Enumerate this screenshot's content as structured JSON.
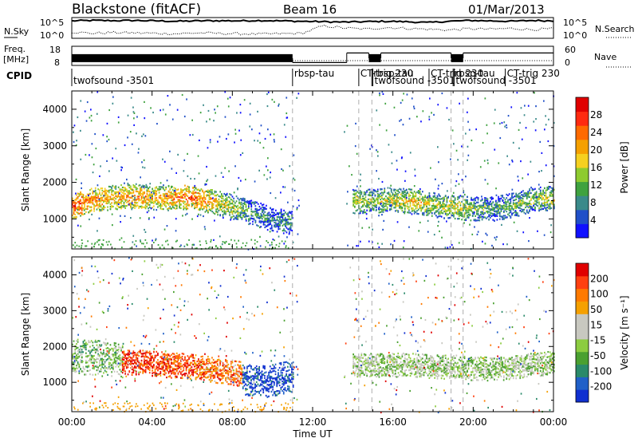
{
  "header": {
    "station": "Blackstone (fitACF)",
    "beam": "Beam 16",
    "date": "01/Mar/2013"
  },
  "noise_panel": {
    "left_label": "N.Sky",
    "right_label": "N.Search",
    "ticks_left": [
      "10^5",
      "10^0"
    ],
    "ticks_right": [
      "10^5",
      "10^0"
    ],
    "series": [
      {
        "name": "N.Sky",
        "style": "solid",
        "values_log10": [
          4.2,
          4.3,
          4.25,
          4.3,
          4.2,
          4.1,
          4.2,
          4.25,
          4.2,
          4.3,
          4.2,
          4.1,
          4.0,
          3.9,
          4.0,
          4.1,
          4.0,
          3.8,
          4.1,
          4.3,
          4.2,
          4.1,
          4.3,
          4.2
        ]
      },
      {
        "name": "N.Search",
        "style": "dotted",
        "values_log10": [
          1.5,
          1.2,
          1.4,
          1.3,
          1.2,
          1.1,
          1.3,
          1.2,
          1.1,
          1.0,
          1.1,
          1.2,
          3.0,
          2.5,
          2.2,
          2.6,
          2.4,
          2.2,
          2.0,
          2.3,
          2.2,
          2.4,
          2.1,
          2.3
        ]
      }
    ]
  },
  "freq_panel": {
    "left_label_top": "Freq.",
    "left_label_bottom": "[MHz]",
    "right_label": "Nave",
    "ticks_left": [
      "18",
      "8"
    ],
    "ticks_right": [
      "60",
      "0"
    ],
    "segments": [
      {
        "start_ut": 0.0,
        "end_ut": 11.0,
        "mhz": 11.8,
        "band": true
      },
      {
        "start_ut": 11.0,
        "end_ut": 13.7,
        "mhz": 9.5,
        "band": false
      },
      {
        "start_ut": 13.7,
        "end_ut": 14.8,
        "mhz": 14.5,
        "band": false
      },
      {
        "start_ut": 14.8,
        "end_ut": 15.4,
        "mhz": 11.8,
        "band": true
      },
      {
        "start_ut": 15.4,
        "end_ut": 18.9,
        "mhz": 14.5,
        "band": false
      },
      {
        "start_ut": 18.9,
        "end_ut": 19.5,
        "mhz": 11.8,
        "band": true
      },
      {
        "start_ut": 19.5,
        "end_ut": 24.0,
        "mhz": 14.5,
        "band": false
      }
    ]
  },
  "cpid": {
    "label": "CPID",
    "entries": [
      {
        "text": "twofsound -3501",
        "start_ut": 0.0,
        "row": 2
      },
      {
        "text": "rbsp-tau",
        "start_ut": 11.0,
        "row": 1
      },
      {
        "text": "CT-trig 230",
        "start_ut": 14.3,
        "row": 1
      },
      {
        "text": "rbsp-tau",
        "start_ut": 14.95,
        "row": 1
      },
      {
        "text": "twofsound -3501",
        "start_ut": 15.0,
        "row": 2
      },
      {
        "text": "CT-trig 230",
        "start_ut": 17.8,
        "row": 1
      },
      {
        "text": "rbsp-tau",
        "start_ut": 19.0,
        "row": 1
      },
      {
        "text": "twofsound -3501",
        "start_ut": 19.05,
        "row": 2
      },
      {
        "text": "CT-trig 230",
        "start_ut": 21.6,
        "row": 1
      }
    ]
  },
  "chart_data": [
    {
      "type": "heatmap",
      "name": "power",
      "ylabel": "Slant Range [km]",
      "ylim": [
        180,
        4500
      ],
      "xlim_hours": [
        0,
        24
      ],
      "yticks": [
        "1000",
        "2000",
        "3000",
        "4000"
      ],
      "colorbar_label": "Power [dB]",
      "colorbar_ticks": [
        "28",
        "24",
        "20",
        "16",
        "12",
        "8",
        "4"
      ],
      "colorbar_colors": [
        "#1010ff",
        "#2050c8",
        "#3a8a8a",
        "#3fa23f",
        "#8ecb2f",
        "#f5d020",
        "#f5a000",
        "#ff6a00",
        "#ff2a10",
        "#e00000"
      ],
      "boundaries_ut": [
        11.0,
        14.3,
        14.95,
        18.9,
        19.5
      ],
      "echo_bands": [
        {
          "start_ut": 0.0,
          "end_ut": 11.0,
          "center_km": [
            1350,
            1550,
            1600,
            1650,
            1600,
            1600,
            1620,
            1500,
            1350,
            1200,
            1000,
            950
          ],
          "width_km": 300,
          "levels": [
            0.85,
            0.75,
            0.65,
            0.7,
            0.65,
            0.7,
            0.8,
            0.65,
            0.5,
            0.35,
            0.3,
            0.35
          ]
        },
        {
          "start_ut": 14.0,
          "end_ut": 24.0,
          "center_km": [
            1500,
            1500,
            1550,
            1500,
            1400,
            1350,
            1300,
            1300,
            1400,
            1550,
            1600
          ],
          "width_km": 300,
          "levels": [
            0.5,
            0.45,
            0.55,
            0.6,
            0.5,
            0.55,
            0.45,
            0.35,
            0.4,
            0.45,
            0.55
          ]
        }
      ]
    },
    {
      "type": "heatmap",
      "name": "velocity",
      "ylabel": "Slant Range [km]",
      "ylim": [
        180,
        4500
      ],
      "xlim_hours": [
        0,
        24
      ],
      "yticks": [
        "1000",
        "2000",
        "3000",
        "4000"
      ],
      "xticks": [
        "00:00",
        "04:00",
        "08:00",
        "12:00",
        "16:00",
        "20:00",
        "00:00"
      ],
      "xlabel": "Time UT",
      "colorbar_label": "Velocity [m s⁻¹]",
      "colorbar_ticks": [
        "200",
        "100",
        "50",
        "15",
        "-15",
        "-50",
        "-100",
        "-200"
      ],
      "colorbar_colors": [
        "#1030d0",
        "#2060c8",
        "#2a8a6a",
        "#4aa030",
        "#8ccc40",
        "#c8c8c0",
        "#c8c8c0",
        "#f5a000",
        "#ff7a00",
        "#ff4010",
        "#e00000"
      ],
      "boundaries_ut": [
        11.0,
        14.3,
        14.95,
        18.9,
        19.5
      ],
      "echo_bands": [
        {
          "start_ut": 0.0,
          "end_ut": 2.5,
          "center_km": [
            1750,
            1700,
            1650
          ],
          "width_km": 450,
          "levels": [
            0.4,
            0.4,
            0.45
          ]
        },
        {
          "start_ut": 2.5,
          "end_ut": 8.5,
          "center_km": [
            1600,
            1550,
            1500,
            1450,
            1350,
            1250
          ],
          "width_km": 320,
          "levels": [
            0.88,
            0.9,
            0.88,
            0.82,
            0.78,
            0.75
          ]
        },
        {
          "start_ut": 8.5,
          "end_ut": 11.0,
          "center_km": [
            1100,
            1050,
            1200
          ],
          "width_km": 400,
          "levels": [
            0.1,
            0.05,
            0.08
          ]
        },
        {
          "start_ut": 14.0,
          "end_ut": 24.0,
          "center_km": [
            1500,
            1500,
            1500,
            1500,
            1450,
            1450,
            1400,
            1400,
            1450,
            1500,
            1550
          ],
          "width_km": 300,
          "levels": [
            0.45,
            0.45,
            0.45,
            0.45,
            0.45,
            0.45,
            0.45,
            0.45,
            0.45,
            0.45,
            0.45
          ]
        }
      ]
    }
  ]
}
